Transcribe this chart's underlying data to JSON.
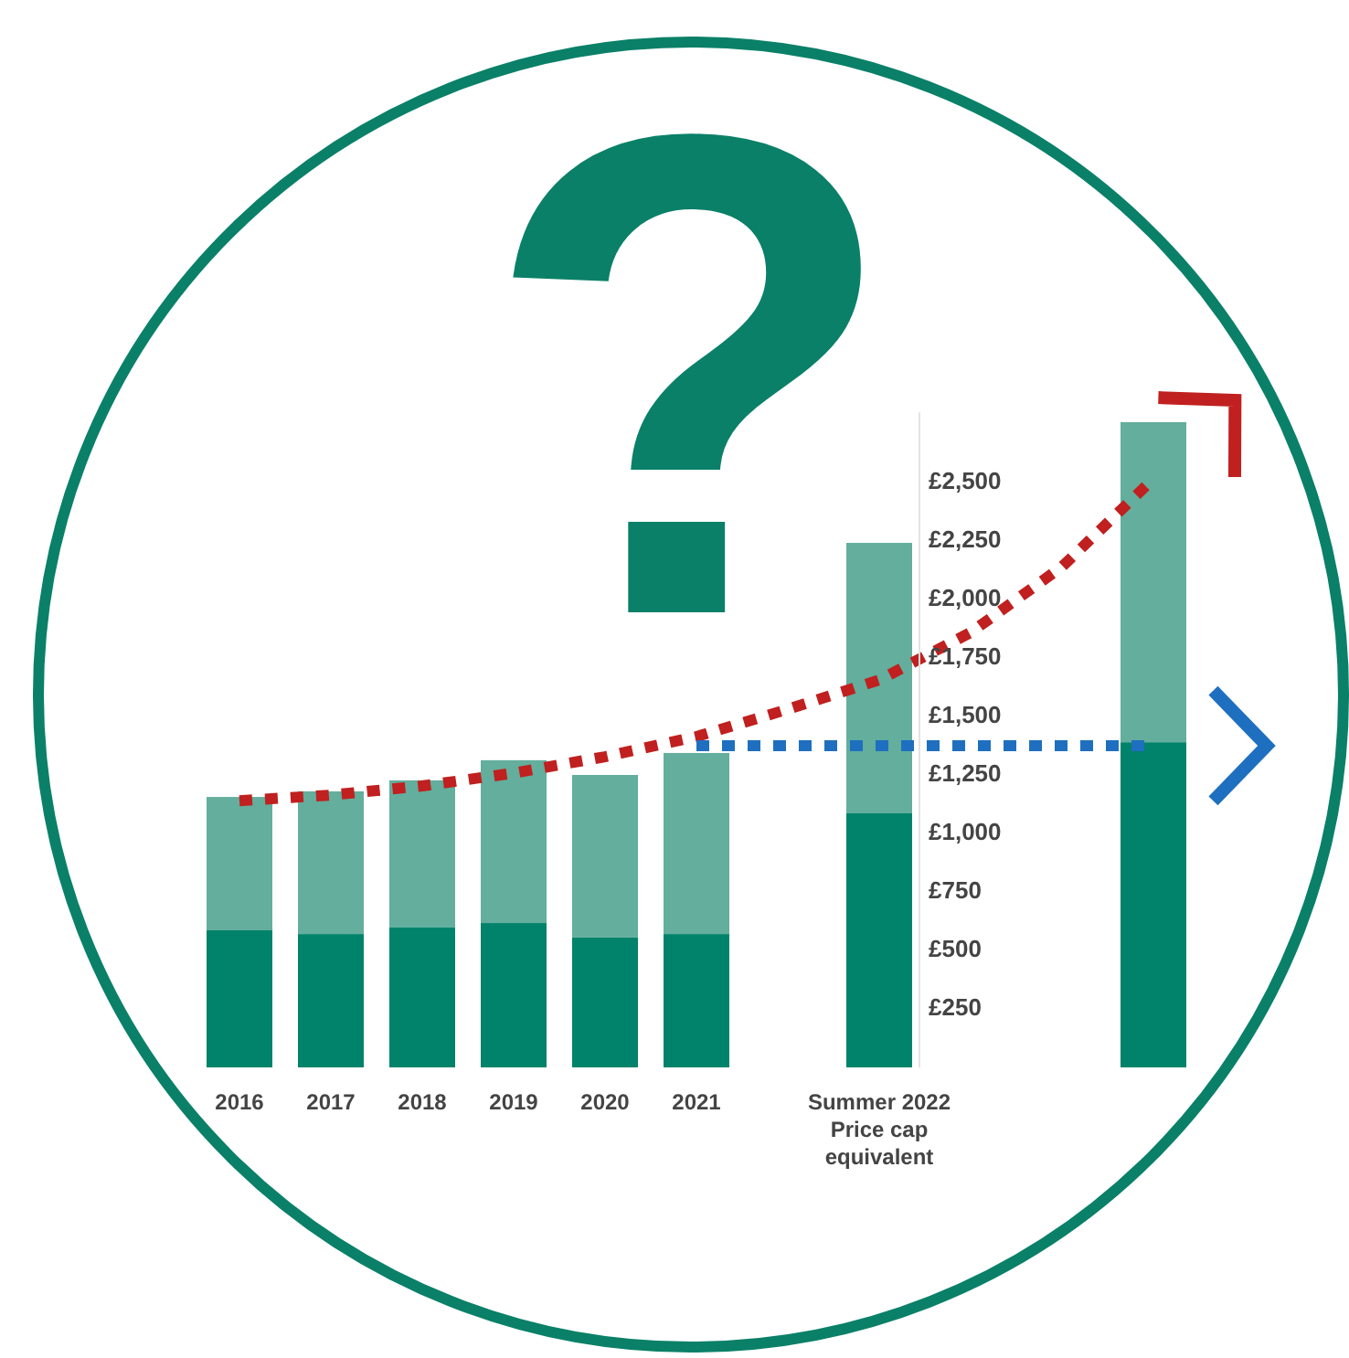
{
  "chart_data": {
    "type": "bar",
    "stacked": true,
    "categories": [
      "2016",
      "2017",
      "2018",
      "2019",
      "2020",
      "2021",
      null,
      "Summer 2022 Price cap equivalent",
      null,
      null,
      null
    ],
    "series": [
      {
        "color": "#00836a",
        "values": [
          586,
          570,
          600,
          617,
          555,
          570,
          null,
          1086,
          null,
          null,
          1390
        ]
      },
      {
        "color": "#63ae9c",
        "values": [
          570,
          610,
          627,
          696,
          695,
          774,
          null,
          1156,
          null,
          null,
          1368
        ]
      },
      {
        "type": "line",
        "color": "#c0201f",
        "line_style": "dotted",
        "values": [
          1140,
          1164,
          1203,
          1258,
          1328,
          1414,
          1531,
          1656,
          1859,
          2140,
          2516
        ]
      },
      {
        "type": "line",
        "color": "#1f6fc0",
        "line_style": "dotted",
        "values": [
          null,
          null,
          null,
          null,
          null,
          1375,
          1375,
          1375,
          1375,
          1375,
          1375
        ]
      }
    ],
    "ylim": [
      0,
      2800
    ],
    "yticks": [
      {
        "value": 250,
        "label": "£250"
      },
      {
        "value": 500,
        "label": "£500"
      },
      {
        "value": 750,
        "label": "£750"
      },
      {
        "value": 1000,
        "label": "£1,000"
      },
      {
        "value": 1250,
        "label": "£1,250"
      },
      {
        "value": 1500,
        "label": "£1,500"
      },
      {
        "value": 1750,
        "label": "£1,750"
      },
      {
        "value": 2000,
        "label": "£2,000"
      },
      {
        "value": 2250,
        "label": "£2,250"
      },
      {
        "value": 2500,
        "label": "£2,500"
      }
    ],
    "annotations": [
      "?"
    ]
  }
}
